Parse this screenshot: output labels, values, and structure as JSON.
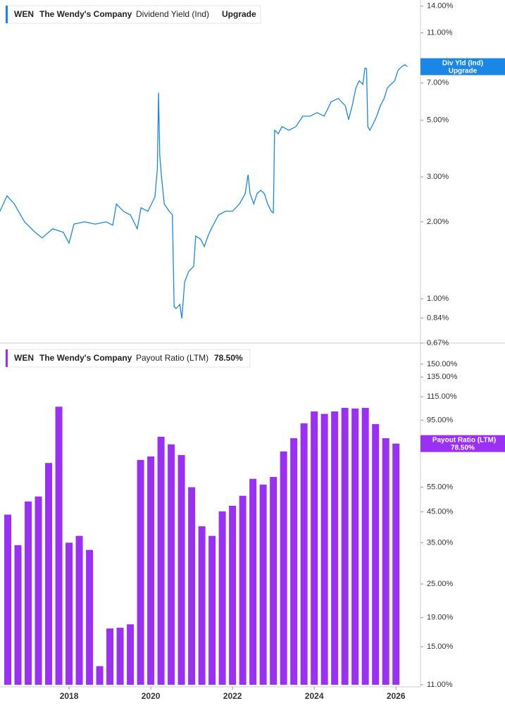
{
  "chart_data": [
    {
      "type": "line",
      "ticker": "WEN",
      "company": "The Wendy's Company",
      "metric": "Dividend Yield (Ind)",
      "status": "Upgrade",
      "badge_name": "Div Yld (Ind)",
      "log_scale": true,
      "color": "#1a87e6",
      "x": [
        2016.31,
        2016.48,
        2016.66,
        2016.91,
        2017.17,
        2017.34,
        2017.6,
        2017.86,
        2018.0,
        2018.12,
        2018.38,
        2018.64,
        2018.91,
        2019.07,
        2019.16,
        2019.33,
        2019.5,
        2019.67,
        2019.76,
        2019.93,
        2020.1,
        2020.16,
        2020.19,
        2020.22,
        2020.26,
        2020.33,
        2020.45,
        2020.53,
        2020.57,
        2020.62,
        2020.71,
        2020.76,
        2020.83,
        2020.93,
        2021.05,
        2021.1,
        2021.22,
        2021.31,
        2021.4,
        2021.48,
        2021.66,
        2021.83,
        2022.0,
        2022.17,
        2022.31,
        2022.38,
        2022.43,
        2022.52,
        2022.6,
        2022.69,
        2022.78,
        2022.86,
        2022.95,
        2023.0,
        2023.03,
        2023.12,
        2023.21,
        2023.38,
        2023.55,
        2023.72,
        2023.9,
        2024.07,
        2024.24,
        2024.33,
        2024.41,
        2024.59,
        2024.67,
        2024.76,
        2024.84,
        2024.93,
        2025.02,
        2025.1,
        2025.19,
        2025.24,
        2025.28,
        2025.31,
        2025.36,
        2025.45,
        2025.53,
        2025.62,
        2025.71,
        2025.79,
        2025.88,
        2025.97,
        2026.05,
        2026.14,
        2026.22,
        2026.28
      ],
      "values": [
        2.2,
        2.53,
        2.35,
        2.0,
        1.82,
        1.73,
        1.88,
        1.82,
        1.65,
        1.96,
        2.0,
        1.96,
        2.0,
        1.94,
        2.35,
        2.2,
        2.13,
        1.88,
        2.27,
        2.2,
        2.5,
        3.22,
        6.41,
        3.66,
        3.02,
        2.35,
        2.2,
        2.13,
        0.93,
        0.915,
        0.95,
        0.837,
        1.165,
        1.28,
        1.34,
        1.76,
        1.71,
        1.6,
        1.76,
        1.88,
        2.13,
        2.2,
        2.2,
        2.35,
        2.58,
        3.06,
        2.58,
        2.35,
        2.58,
        2.66,
        2.58,
        2.35,
        2.2,
        2.17,
        4.57,
        4.43,
        4.72,
        4.57,
        4.72,
        5.19,
        5.19,
        5.36,
        5.19,
        5.53,
        5.9,
        6.09,
        5.9,
        5.71,
        5.03,
        5.71,
        6.7,
        7.14,
        6.92,
        8.01,
        7.96,
        4.72,
        4.57,
        4.87,
        5.19,
        5.71,
        6.09,
        6.7,
        6.92,
        7.14,
        7.85,
        8.11,
        8.26,
        8.11
      ],
      "xlim": [
        2016.31,
        2026.6
      ],
      "ylim": [
        0.67,
        14.8
      ],
      "yticks": [
        {
          "value": 14,
          "label": "14.00%"
        },
        {
          "value": 11,
          "label": "11.00%"
        },
        {
          "value": 7,
          "label": "7.00%"
        },
        {
          "value": 5,
          "label": "5.00%"
        },
        {
          "value": 3,
          "label": "3.00%"
        },
        {
          "value": 2,
          "label": "2.00%"
        },
        {
          "value": 1,
          "label": "1.00%"
        },
        {
          "value": 0.84,
          "label": "0.84%"
        },
        {
          "value": 0.67,
          "label": "0.67%"
        }
      ]
    },
    {
      "type": "bar",
      "ticker": "WEN",
      "company": "The Wendy's Company",
      "metric": "Payout Ratio (LTM)",
      "current_label": "78.50%",
      "log_scale": true,
      "color": "#9b30f5",
      "x": [
        2016.5,
        2016.75,
        2017.0,
        2017.25,
        2017.5,
        2017.75,
        2018.0,
        2018.25,
        2018.5,
        2018.75,
        2019.0,
        2019.25,
        2019.5,
        2019.75,
        2020.0,
        2020.25,
        2020.5,
        2020.75,
        2021.0,
        2021.25,
        2021.5,
        2021.75,
        2022.0,
        2022.25,
        2022.5,
        2022.75,
        2023.0,
        2023.25,
        2023.5,
        2023.75,
        2024.0,
        2024.25,
        2024.5,
        2024.75,
        2025.0,
        2025.25,
        2025.5,
        2025.75,
        2026.0
      ],
      "values": [
        44,
        34.3,
        49,
        51,
        67,
        106,
        35,
        37,
        33,
        12.8,
        17.4,
        17.5,
        18,
        68.7,
        70.7,
        83,
        78,
        71.5,
        55,
        40,
        37,
        45.2,
        47.3,
        51.3,
        58.9,
        56.2,
        59.8,
        73.6,
        82,
        92.6,
        102,
        100,
        102,
        105,
        104.5,
        105,
        92,
        82,
        78.5
      ],
      "xlim": [
        2016.31,
        2026.6
      ],
      "xticks": [
        2018,
        2020,
        2022,
        2024,
        2026
      ],
      "ylim": [
        11,
        173
      ],
      "yticks": [
        {
          "value": 150,
          "label": "150.00%"
        },
        {
          "value": 135,
          "label": "135.00%"
        },
        {
          "value": 115,
          "label": "115.00%"
        },
        {
          "value": 95,
          "label": "95.00%"
        },
        {
          "value": 55,
          "label": "55.00%"
        },
        {
          "value": 45,
          "label": "45.00%"
        },
        {
          "value": 35,
          "label": "35.00%"
        },
        {
          "value": 25,
          "label": "25.00%"
        },
        {
          "value": 19,
          "label": "19.00%"
        },
        {
          "value": 15,
          "label": "15.00%"
        },
        {
          "value": 11,
          "label": "11.00%"
        }
      ]
    }
  ]
}
